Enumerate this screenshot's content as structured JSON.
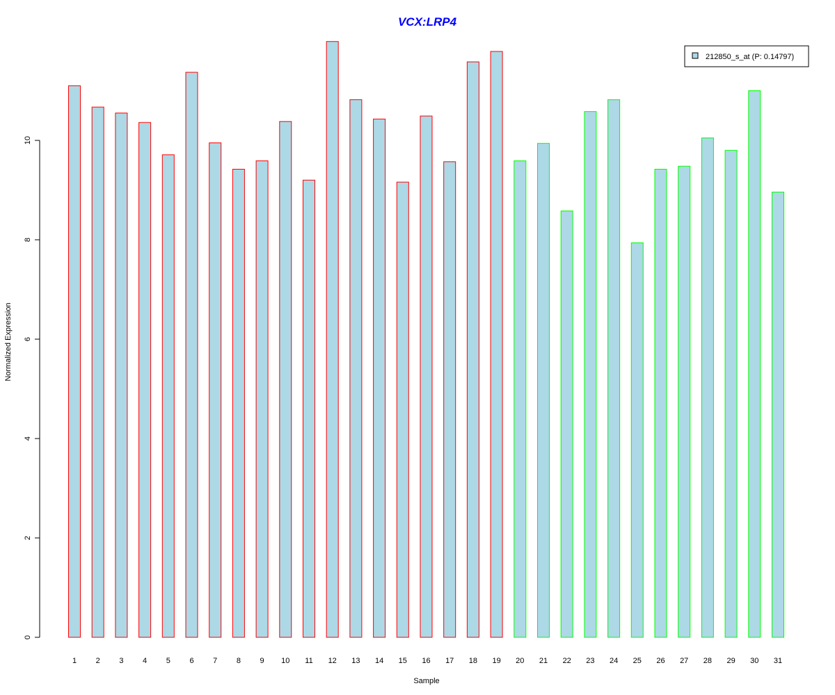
{
  "chart_data": {
    "type": "bar",
    "title": "VCX:LRP4",
    "xlabel": "Sample",
    "ylabel": "Normalized Expression",
    "ylim": [
      0,
      12
    ],
    "yticks": [
      0,
      2,
      4,
      6,
      8,
      10
    ],
    "categories": [
      "1",
      "2",
      "3",
      "4",
      "5",
      "6",
      "7",
      "8",
      "9",
      "10",
      "11",
      "12",
      "13",
      "14",
      "15",
      "16",
      "17",
      "18",
      "19",
      "20",
      "21",
      "22",
      "23",
      "24",
      "25",
      "26",
      "27",
      "28",
      "29",
      "30",
      "31"
    ],
    "series": [
      {
        "name": "212850_s_at (P: 0.14797)",
        "fill": "#add8e6",
        "values": [
          11.1,
          10.67,
          10.55,
          10.36,
          9.71,
          11.37,
          9.95,
          9.42,
          9.59,
          10.38,
          9.2,
          11.99,
          10.82,
          10.43,
          9.16,
          10.49,
          9.57,
          11.58,
          11.79,
          9.59,
          9.94,
          8.58,
          10.58,
          10.82,
          7.94,
          9.42,
          9.48,
          10.05,
          9.8,
          11.0,
          8.96
        ]
      }
    ],
    "bar_border_colors": [
      "#ff0000",
      "#ff0000",
      "#ff0000",
      "#ff0000",
      "#ff0000",
      "#ff0000",
      "#ff0000",
      "#ff0000",
      "#ff0000",
      "#ff0000",
      "#ff0000",
      "#ff0000",
      "#ff0000",
      "#ff0000",
      "#ff0000",
      "#ff0000",
      "#ff0000",
      "#ff0000",
      "#ff0000",
      "#00ff00",
      "#00ff00",
      "#00ff00",
      "#00ff00",
      "#00ff00",
      "#00ff00",
      "#00ff00",
      "#00ff00",
      "#00ff00",
      "#00ff00",
      "#00ff00",
      "#00ff00"
    ],
    "legend": {
      "label": "212850_s_at (P: 0.14797)",
      "position": "top-right"
    },
    "grid": false
  }
}
